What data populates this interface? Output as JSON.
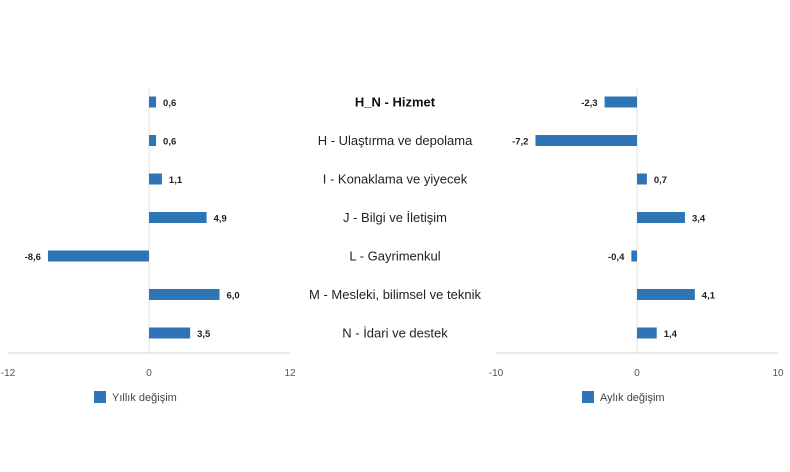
{
  "chart_data": {
    "type": "bar",
    "orientation": "horizontal",
    "categories": [
      "H_N - Hizmet",
      "H - Ulaştırma ve depolama",
      "I - Konaklama ve yiyecek",
      "J - Bilgi ve İletişim",
      "L - Gayrimenkul",
      "M - Mesleki, bilimsel ve teknik",
      "N - İdari ve destek"
    ],
    "highlight_category": "H_N - Hizmet",
    "series": [
      {
        "name": "Yıllık değişim",
        "values": [
          0.6,
          0.6,
          1.1,
          4.9,
          -8.6,
          6.0,
          3.5
        ],
        "labels": [
          "0,6",
          "0,6",
          "1,1",
          "4,9",
          "-8,6",
          "6,0",
          "3,5"
        ],
        "xlim": [
          -12,
          12
        ],
        "ticks": [
          "-12",
          "0",
          "12"
        ],
        "color": "#2e75b6"
      },
      {
        "name": "Aylık değişim",
        "values": [
          -2.3,
          -7.2,
          0.7,
          3.4,
          -0.4,
          4.1,
          1.4
        ],
        "labels": [
          "-2,3",
          "-7,2",
          "0,7",
          "3,4",
          "-0,4",
          "4,1",
          "1,4"
        ],
        "xlim": [
          -10,
          10
        ],
        "ticks": [
          "-10",
          "0",
          "10"
        ],
        "color": "#2e75b6"
      }
    ],
    "grid": false,
    "legend_position": "bottom"
  }
}
